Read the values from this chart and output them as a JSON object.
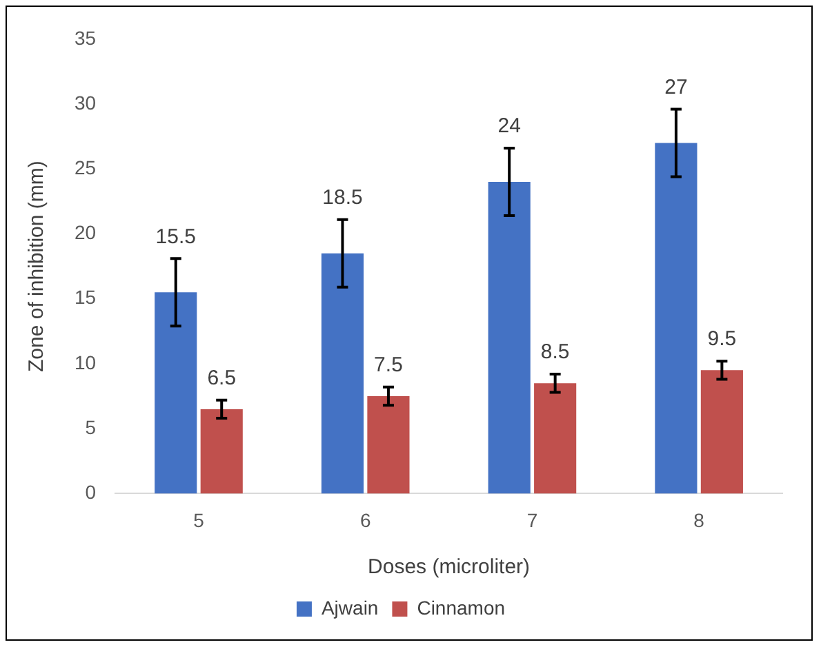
{
  "chart_data": {
    "type": "bar",
    "xlabel": "Doses (microliter)",
    "ylabel": "Zone of inhibition (mm)",
    "categories": [
      "5",
      "6",
      "7",
      "8"
    ],
    "series": [
      {
        "name": "Ajwain",
        "color": "#4472c4",
        "values": [
          15.5,
          18.5,
          24,
          27
        ],
        "errors": [
          2.6,
          2.6,
          2.6,
          2.6
        ]
      },
      {
        "name": "Cinnamon",
        "color": "#c0504d",
        "values": [
          6.5,
          7.5,
          8.5,
          9.5
        ],
        "errors": [
          0.7,
          0.7,
          0.7,
          0.7
        ]
      }
    ],
    "ylim": [
      0,
      35
    ],
    "yticks": [
      0,
      5,
      10,
      15,
      20,
      25,
      30,
      35
    ],
    "grid": false,
    "legend": "bottom",
    "data_labels": true
  }
}
